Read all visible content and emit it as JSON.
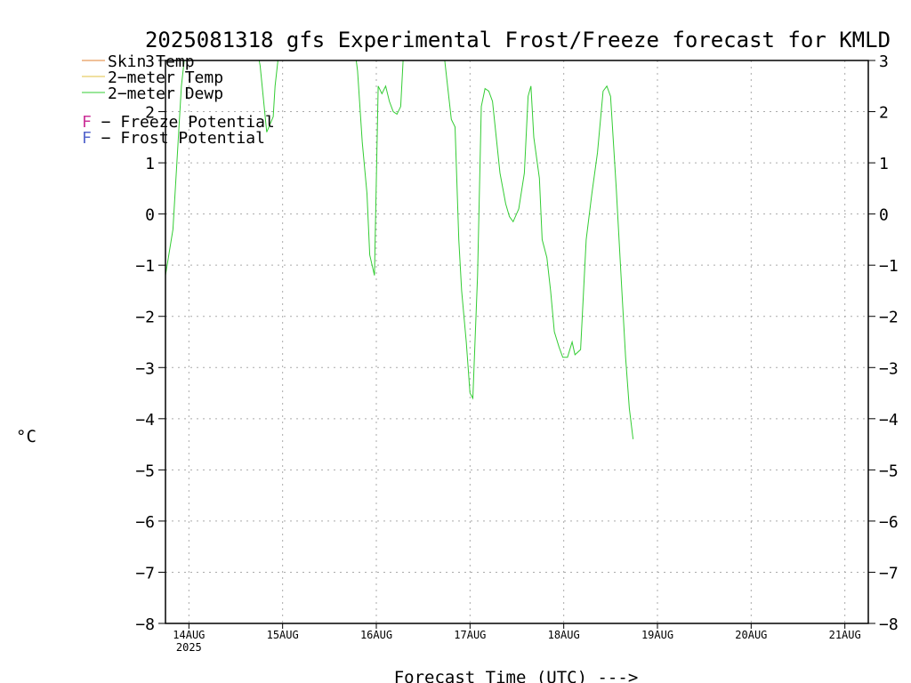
{
  "chart_data": {
    "type": "line",
    "title": "2025081318 gfs Experimental Frost/Freeze forecast for KMLD",
    "xlabel": "Forecast Time (UTC) --->",
    "ylabel": "°C",
    "ylim": [
      -8,
      3
    ],
    "xlim": [
      13.75,
      21.25
    ],
    "yticks": [
      3,
      2,
      1,
      0,
      -1,
      -2,
      -3,
      -4,
      -5,
      -6,
      -7,
      -8
    ],
    "ytick_labels_left": [
      "3",
      "2",
      "1",
      "0",
      "−1",
      "−2",
      "−3",
      "−4",
      "−5",
      "−6",
      "−7",
      "−8"
    ],
    "ytick_labels_right": [
      "3",
      "2",
      "1",
      "0",
      "−1",
      "−2",
      "−3",
      "−4",
      "−5",
      "−6",
      "−7",
      "−8"
    ],
    "x_ticks": [
      {
        "day": 14,
        "label": "14AUG",
        "sublabel": "2025"
      },
      {
        "day": 15,
        "label": "15AUG",
        "sublabel": ""
      },
      {
        "day": 16,
        "label": "16AUG",
        "sublabel": ""
      },
      {
        "day": 17,
        "label": "17AUG",
        "sublabel": ""
      },
      {
        "day": 18,
        "label": "18AUG",
        "sublabel": ""
      },
      {
        "day": 19,
        "label": "19AUG",
        "sublabel": ""
      },
      {
        "day": 20,
        "label": "20AUG",
        "sublabel": ""
      },
      {
        "day": 21,
        "label": "21AUG",
        "sublabel": ""
      }
    ],
    "grid": true,
    "legend_position": "top-left",
    "legend": [
      {
        "label": "Skin Temp",
        "color": "#e08030"
      },
      {
        "label": "2−meter Temp",
        "color": "#e0c040"
      },
      {
        "label": "2−meter Dewp",
        "color": "#33cc33"
      }
    ],
    "potential_legend": [
      {
        "letter": "F",
        "text": " − Freeze Potential",
        "color": "#cc3399"
      },
      {
        "letter": "F",
        "text": " − Frost Potential",
        "color": "#5566cc"
      }
    ],
    "series": [
      {
        "name": "2−meter Dewp",
        "color": "#33cc33",
        "points": [
          [
            13.75,
            -1.2
          ],
          [
            13.83,
            -0.3
          ],
          [
            13.92,
            2.5
          ],
          [
            13.98,
            3.5
          ],
          [
            14.7,
            3.5
          ],
          [
            14.76,
            2.9
          ],
          [
            14.83,
            1.6
          ],
          [
            14.9,
            1.9
          ],
          [
            14.92,
            2.5
          ],
          [
            14.98,
            3.5
          ],
          [
            15.75,
            3.5
          ],
          [
            15.8,
            2.8
          ],
          [
            15.85,
            1.4
          ],
          [
            15.9,
            0.4
          ],
          [
            15.93,
            -0.8
          ],
          [
            15.98,
            -1.2
          ],
          [
            16.02,
            2.5
          ],
          [
            16.06,
            2.35
          ],
          [
            16.1,
            2.5
          ],
          [
            16.14,
            2.2
          ],
          [
            16.18,
            2.0
          ],
          [
            16.22,
            1.95
          ],
          [
            16.26,
            2.1
          ],
          [
            16.3,
            3.5
          ],
          [
            16.7,
            3.5
          ],
          [
            16.76,
            2.5
          ],
          [
            16.8,
            1.85
          ],
          [
            16.84,
            1.7
          ],
          [
            16.88,
            -0.5
          ],
          [
            16.91,
            -1.5
          ],
          [
            16.96,
            -2.5
          ],
          [
            17.0,
            -3.5
          ],
          [
            17.03,
            -3.6
          ],
          [
            17.08,
            -1.2
          ],
          [
            17.12,
            2.1
          ],
          [
            17.16,
            2.45
          ],
          [
            17.2,
            2.4
          ],
          [
            17.24,
            2.2
          ],
          [
            17.28,
            1.5
          ],
          [
            17.32,
            0.8
          ],
          [
            17.38,
            0.2
          ],
          [
            17.42,
            -0.05
          ],
          [
            17.46,
            -0.15
          ],
          [
            17.52,
            0.1
          ],
          [
            17.58,
            0.8
          ],
          [
            17.62,
            2.3
          ],
          [
            17.65,
            2.5
          ],
          [
            17.68,
            1.5
          ],
          [
            17.74,
            0.7
          ],
          [
            17.77,
            -0.5
          ],
          [
            17.82,
            -0.85
          ],
          [
            17.86,
            -1.5
          ],
          [
            17.9,
            -2.3
          ],
          [
            17.95,
            -2.6
          ],
          [
            17.99,
            -2.8
          ],
          [
            18.04,
            -2.8
          ],
          [
            18.09,
            -2.5
          ],
          [
            18.12,
            -2.75
          ],
          [
            18.18,
            -2.65
          ],
          [
            18.24,
            -0.5
          ],
          [
            18.3,
            0.4
          ],
          [
            18.36,
            1.2
          ],
          [
            18.42,
            2.4
          ],
          [
            18.46,
            2.5
          ],
          [
            18.5,
            2.3
          ],
          [
            18.56,
            0.5
          ],
          [
            18.62,
            -1.5
          ],
          [
            18.66,
            -2.8
          ],
          [
            18.7,
            -3.8
          ],
          [
            18.74,
            -4.4
          ]
        ]
      }
    ]
  }
}
